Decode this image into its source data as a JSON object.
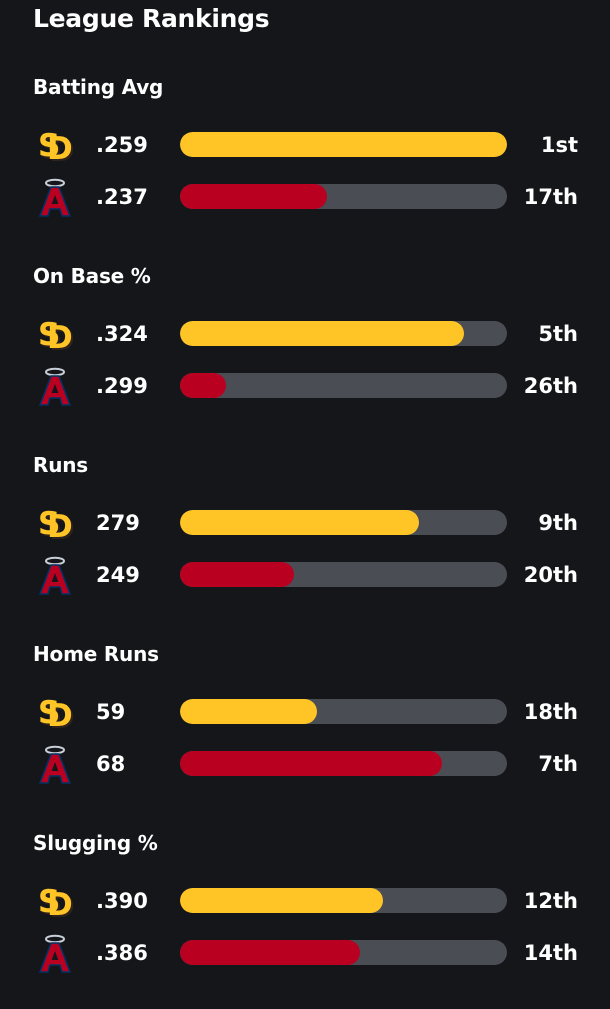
{
  "header": {
    "title": "League Rankings"
  },
  "colors": {
    "padres_bar": "#FFC425",
    "angels_bar": "#BA0021",
    "track": "#4A4D53",
    "padres_logo": "#FFC425",
    "padres_logo_shadow": "#2F241D",
    "angels_logo": "#BA0021",
    "angels_logo_outline": "#003263"
  },
  "teams": {
    "padres": {
      "logo_icon": "padres-sd-logo-icon"
    },
    "angels": {
      "logo_icon": "angels-a-logo-icon"
    }
  },
  "stats": [
    {
      "title": "Batting Avg",
      "rows": [
        {
          "team": "padres",
          "value": ".259",
          "rank": "1st",
          "fill_fraction": 1.0
        },
        {
          "team": "angels",
          "value": ".237",
          "rank": "17th",
          "fill_fraction": 0.45
        }
      ]
    },
    {
      "title": "On Base %",
      "rows": [
        {
          "team": "padres",
          "value": ".324",
          "rank": "5th",
          "fill_fraction": 0.87
        },
        {
          "team": "angels",
          "value": ".299",
          "rank": "26th",
          "fill_fraction": 0.14
        }
      ]
    },
    {
      "title": "Runs",
      "rows": [
        {
          "team": "padres",
          "value": "279",
          "rank": "9th",
          "fill_fraction": 0.73
        },
        {
          "team": "angels",
          "value": "249",
          "rank": "20th",
          "fill_fraction": 0.35
        }
      ]
    },
    {
      "title": "Home Runs",
      "rows": [
        {
          "team": "padres",
          "value": "59",
          "rank": "18th",
          "fill_fraction": 0.42
        },
        {
          "team": "angels",
          "value": "68",
          "rank": "7th",
          "fill_fraction": 0.8
        }
      ]
    },
    {
      "title": "Slugging %",
      "rows": [
        {
          "team": "padres",
          "value": ".390",
          "rank": "12th",
          "fill_fraction": 0.62
        },
        {
          "team": "angels",
          "value": ".386",
          "rank": "14th",
          "fill_fraction": 0.55
        }
      ]
    }
  ]
}
